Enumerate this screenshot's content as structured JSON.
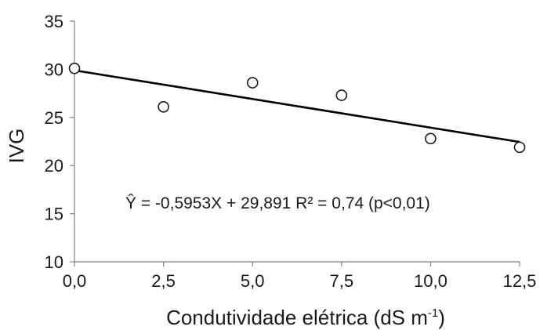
{
  "chart_data": {
    "type": "scatter",
    "xlabel": "Condutividade elétrica (dS m",
    "xlabel_sup": "-1",
    "xlabel_close": ")",
    "ylabel": "IVG",
    "xlim": [
      0,
      12.5
    ],
    "ylim": [
      10,
      35
    ],
    "x_ticks": [
      0,
      2.5,
      5,
      7.5,
      10,
      12.5
    ],
    "x_tick_labels": [
      "0,0",
      "2,5",
      "5,0",
      "7,5",
      "10,0",
      "12,5"
    ],
    "y_ticks": [
      10,
      15,
      20,
      25,
      30,
      35
    ],
    "y_tick_labels": [
      "10",
      "15",
      "20",
      "25",
      "30",
      "35"
    ],
    "points": [
      {
        "x": 0,
        "y": 30.1
      },
      {
        "x": 2.5,
        "y": 26.1
      },
      {
        "x": 5,
        "y": 28.6
      },
      {
        "x": 7.5,
        "y": 27.3
      },
      {
        "x": 10,
        "y": 22.8
      },
      {
        "x": 12.5,
        "y": 21.9
      }
    ],
    "trendline": {
      "slope": -0.5953,
      "intercept": 29.891
    },
    "annotation": "Ŷ = -0,5953X + 29,891  R² = 0,74 (p<0,01)",
    "grid": false,
    "legend": "none"
  }
}
